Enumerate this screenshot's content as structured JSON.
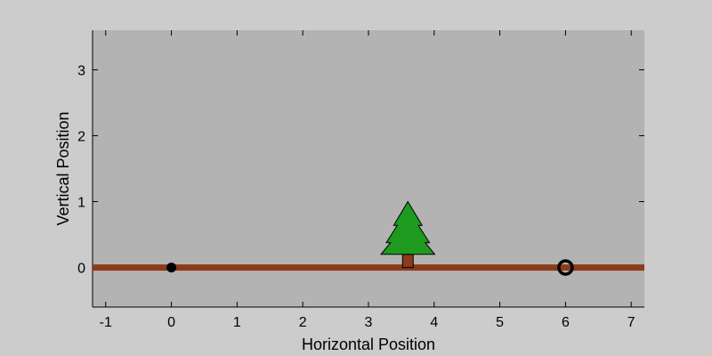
{
  "chart_data": {
    "type": "scatter",
    "xlabel": "Horizontal Position",
    "ylabel": "Vertical Position",
    "xlim": [
      -1.2,
      7.2
    ],
    "ylim": [
      -0.6,
      3.6
    ],
    "x_ticks": [
      -1,
      0,
      1,
      2,
      3,
      4,
      5,
      6,
      7
    ],
    "y_ticks": [
      0,
      1,
      2,
      3
    ],
    "grid": false,
    "colors": {
      "figure_background": "#cccccc",
      "plot_background": "#b3b3b3",
      "ground": "#8b3a1a",
      "tree_foliage": "#1e9a1e",
      "tree_trunk": "#8b3a1a",
      "marker": "#000000"
    },
    "ground": {
      "y": 0
    },
    "points": [
      {
        "x": 0,
        "y": 0,
        "marker": "filled-circle"
      },
      {
        "x": 6,
        "y": 0,
        "marker": "open-circle"
      }
    ],
    "tree": {
      "x": 3.6,
      "y": 0,
      "height": 1.0
    }
  }
}
